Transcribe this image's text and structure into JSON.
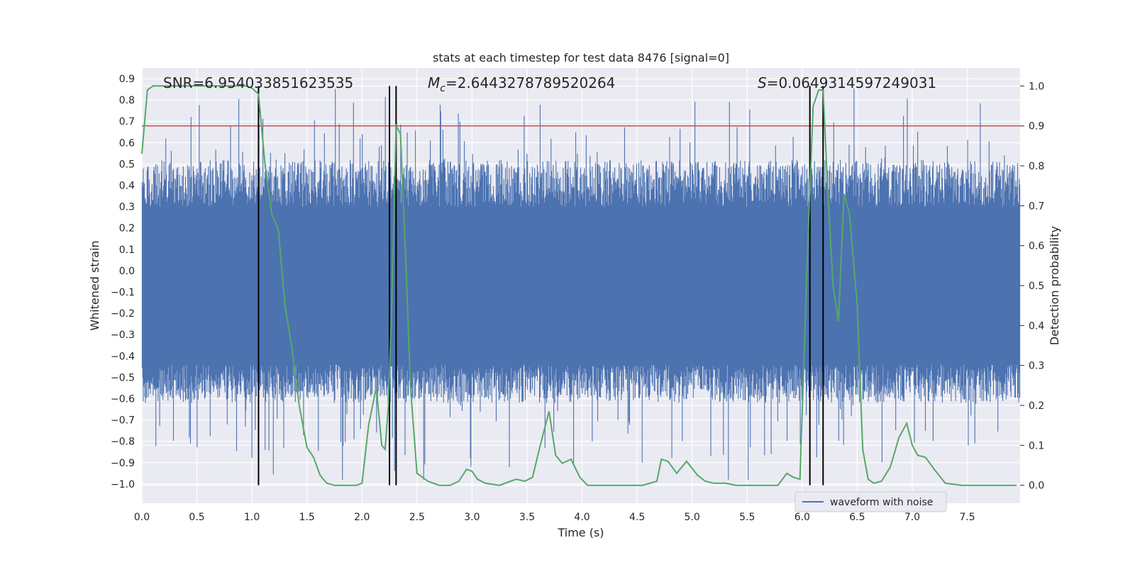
{
  "chart_data": {
    "type": "line",
    "title": "stats at each timestep for test data 8476 [signal=0]",
    "xlabel": "Time (s)",
    "ylabel": "Whitened strain",
    "y2label": "Detection probability",
    "xlim": [
      0.0,
      7.98
    ],
    "ylim": [
      -1.09,
      0.95
    ],
    "y2lim": [
      -0.045,
      1.045
    ],
    "xticks": [
      0.0,
      0.5,
      1.0,
      1.5,
      2.0,
      2.5,
      3.0,
      3.5,
      4.0,
      4.5,
      5.0,
      5.5,
      6.0,
      6.5,
      7.0,
      7.5
    ],
    "xtick_labels": [
      "0.0",
      "0.5",
      "1.0",
      "1.5",
      "2.0",
      "2.5",
      "3.0",
      "3.5",
      "4.0",
      "4.5",
      "5.0",
      "5.5",
      "6.0",
      "6.5",
      "7.0",
      "7.5"
    ],
    "yticks": [
      0.9,
      0.8,
      0.7,
      0.6,
      0.5,
      0.4,
      0.3,
      0.2,
      0.1,
      0.0,
      -0.1,
      -0.2,
      -0.3,
      -0.4,
      -0.5,
      -0.6,
      -0.7,
      -0.8,
      -0.9,
      -1.0
    ],
    "ytick_labels": [
      "0.9",
      "0.8",
      "0.7",
      "0.6",
      "0.5",
      "0.4",
      "0.3",
      "0.2",
      "0.1",
      "0.0",
      "−0.1",
      "−0.2",
      "−0.3",
      "−0.4",
      "−0.5",
      "−0.6",
      "−0.7",
      "−0.8",
      "−0.9",
      "−1.0"
    ],
    "y2ticks": [
      1.0,
      0.9,
      0.8,
      0.7,
      0.6,
      0.5,
      0.4,
      0.3,
      0.2,
      0.1,
      0.0
    ],
    "y2tick_labels": [
      "1.0",
      "0.9",
      "0.8",
      "0.7",
      "0.6",
      "0.5",
      "0.4",
      "0.3",
      "0.2",
      "0.1",
      "0.0"
    ],
    "grid": true,
    "legend": {
      "entries": [
        "waveform with noise"
      ],
      "placement": "lower-right"
    },
    "annotations": {
      "snr": "SNR=6.954033851623535",
      "mc_symbol": "M",
      "mc_sub": "c",
      "mc_value": "=2.6443278789520264",
      "s_symbol": "S",
      "s_value": "=0.0649314597249031"
    },
    "threshold": {
      "axis": "right",
      "value": 0.9,
      "color": "#c44e52"
    },
    "vertical_markers": [
      1.06,
      2.25,
      2.31,
      6.07,
      6.19
    ],
    "waveform": {
      "name": "waveform with noise",
      "color": "#4c72b0",
      "samples": 1600,
      "seed": 8476,
      "dense_band": [
        -0.44,
        0.3
      ],
      "peak_range": [
        -0.98,
        0.86
      ]
    },
    "probability": {
      "axis": "right",
      "color": "#55a868",
      "x": [
        0.0,
        0.05,
        0.1,
        0.2,
        0.4,
        0.6,
        0.8,
        0.95,
        1.0,
        1.06,
        1.12,
        1.18,
        1.24,
        1.3,
        1.36,
        1.43,
        1.5,
        1.56,
        1.62,
        1.68,
        1.75,
        1.85,
        1.95,
        2.0,
        2.06,
        2.13,
        2.18,
        2.21,
        2.24,
        2.27,
        2.31,
        2.35,
        2.4,
        2.44,
        2.5,
        2.6,
        2.7,
        2.8,
        2.88,
        2.95,
        3.0,
        3.05,
        3.12,
        3.25,
        3.35,
        3.4,
        3.48,
        3.55,
        3.62,
        3.7,
        3.76,
        3.82,
        3.9,
        3.98,
        4.05,
        4.15,
        4.25,
        4.4,
        4.55,
        4.68,
        4.72,
        4.78,
        4.86,
        4.95,
        5.05,
        5.12,
        5.2,
        5.3,
        5.4,
        5.6,
        5.78,
        5.86,
        5.92,
        5.98,
        6.05,
        6.1,
        6.15,
        6.19,
        6.23,
        6.28,
        6.33,
        6.38,
        6.43,
        6.5,
        6.55,
        6.6,
        6.65,
        6.72,
        6.8,
        6.88,
        6.95,
        7.0,
        7.05,
        7.12,
        7.2,
        7.3,
        7.45,
        7.6,
        7.75,
        7.95
      ],
      "y": [
        0.83,
        0.99,
        1.0,
        1.0,
        1.0,
        1.0,
        1.0,
        1.0,
        0.995,
        0.98,
        0.8,
        0.68,
        0.64,
        0.45,
        0.35,
        0.2,
        0.095,
        0.07,
        0.025,
        0.005,
        0.0,
        0.0,
        0.0,
        0.005,
        0.15,
        0.245,
        0.1,
        0.09,
        0.2,
        0.45,
        0.9,
        0.88,
        0.55,
        0.25,
        0.03,
        0.01,
        0.0,
        0.0,
        0.01,
        0.04,
        0.035,
        0.015,
        0.005,
        0.0,
        0.01,
        0.015,
        0.01,
        0.02,
        0.1,
        0.185,
        0.075,
        0.055,
        0.065,
        0.02,
        0.0,
        0.0,
        0.0,
        0.0,
        0.0,
        0.01,
        0.065,
        0.06,
        0.03,
        0.06,
        0.025,
        0.01,
        0.005,
        0.005,
        0.0,
        0.0,
        0.0,
        0.03,
        0.02,
        0.015,
        0.6,
        0.95,
        0.99,
        0.99,
        0.75,
        0.5,
        0.41,
        0.73,
        0.68,
        0.45,
        0.09,
        0.015,
        0.005,
        0.01,
        0.045,
        0.12,
        0.155,
        0.1,
        0.075,
        0.07,
        0.04,
        0.005,
        0.0,
        0.0,
        0.0,
        0.0
      ]
    }
  }
}
